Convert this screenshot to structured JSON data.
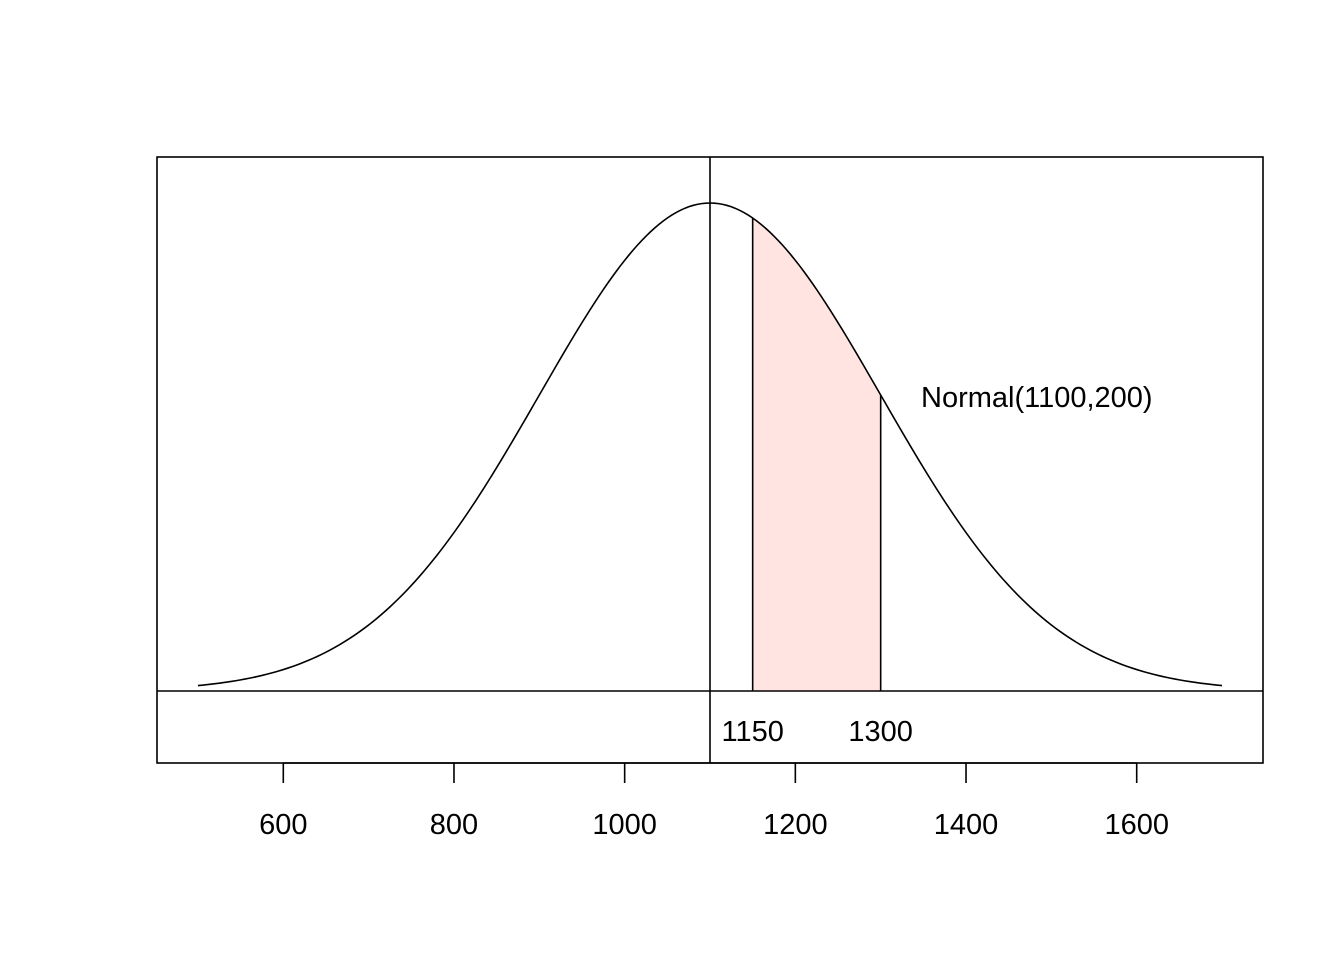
{
  "chart_data": {
    "type": "area",
    "title": "",
    "xlabel": "",
    "ylabel": "",
    "distribution": {
      "family": "Normal",
      "mean": 1100,
      "sd": 200
    },
    "x_range": [
      500,
      1700
    ],
    "xlim": [
      452,
      1748
    ],
    "x_ticks": [
      600,
      800,
      1000,
      1200,
      1400,
      1600
    ],
    "mean_line": 1100,
    "shaded_region": {
      "from": 1150,
      "to": 1300,
      "color": "#ffe4e1"
    },
    "curve_label": "Normal(1100,200)",
    "interval_labels": [
      "1150",
      "1300"
    ],
    "grid": false,
    "legend": "none",
    "line_color": "#000000"
  }
}
